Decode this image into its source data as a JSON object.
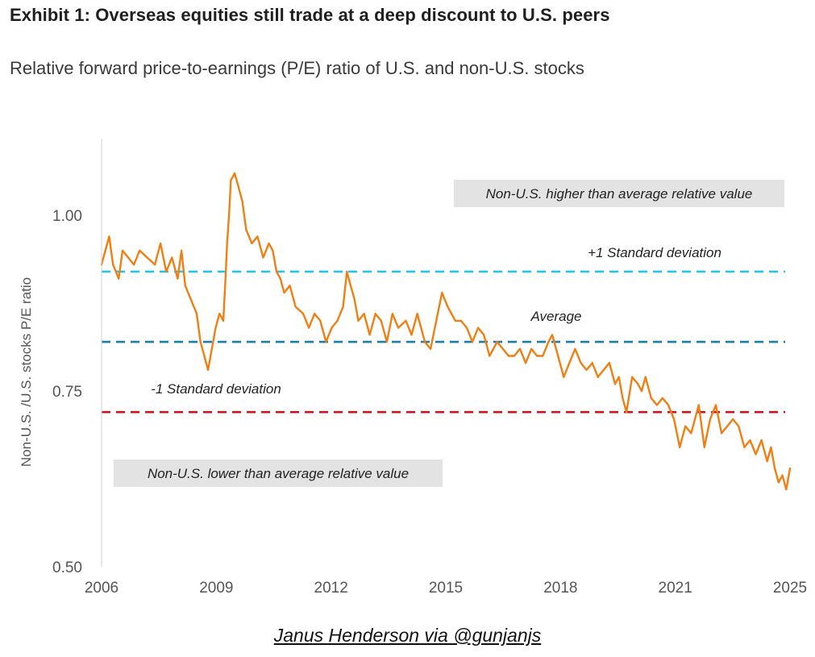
{
  "header": {
    "title": "Exhibit 1: Overseas equities still trade at a deep discount to U.S. peers",
    "subtitle": "Relative forward price-to-earnings (P/E) ratio of U.S. and non-U.S. stocks"
  },
  "footer": {
    "source": "Janus Henderson via @gunjanjs"
  },
  "colors": {
    "series": "#f07f13",
    "plus_sd": "#25c4ec",
    "average": "#1a7ea8",
    "minus_sd": "#d2121d",
    "annotation_box": "#e3e3e3",
    "axis_text": "#555555"
  },
  "chart_data": {
    "type": "line",
    "title": "",
    "xlabel": "",
    "ylabel": "Non-U.S. /U.S. stocks P/E ratio",
    "xlim": [
      2006,
      2024.1
    ],
    "ylim": [
      0.5,
      1.1
    ],
    "xticks": [
      "2006",
      "2009",
      "2012",
      "2015",
      "2018",
      "2021",
      "2025"
    ],
    "yticks": [
      "1.00",
      "0.75",
      "0.50"
    ],
    "grid": false,
    "legend": "none",
    "reference_lines": [
      {
        "label": "+1 Standard deviation",
        "value": 0.92,
        "style": "dashed",
        "color": "#25c4ec"
      },
      {
        "label": "Average",
        "value": 0.82,
        "style": "dashed",
        "color": "#1a7ea8"
      },
      {
        "label": "-1 Standard deviation",
        "value": 0.72,
        "style": "dashed",
        "color": "#d2121d"
      }
    ],
    "annotations": [
      {
        "text": "Non-U.S. higher than average relative value",
        "position": "top-right"
      },
      {
        "text": "Non-U.S. lower than average relative value",
        "position": "bottom-left"
      }
    ],
    "series": [
      {
        "x": [
          2006.0,
          2006.1,
          2006.2,
          2006.3,
          2006.45,
          2006.55,
          2006.7,
          2006.85,
          2007.0,
          2007.2,
          2007.4,
          2007.55,
          2007.7,
          2007.85,
          2008.0,
          2008.1,
          2008.2,
          2008.35,
          2008.5,
          2008.6,
          2008.7,
          2008.8,
          2008.9,
          2009.0,
          2009.1,
          2009.2,
          2009.25,
          2009.3,
          2009.35,
          2009.4,
          2009.5,
          2009.6,
          2009.7,
          2009.8,
          2009.95,
          2010.1,
          2010.25,
          2010.4,
          2010.5,
          2010.6,
          2010.7,
          2010.8,
          2010.95,
          2011.1,
          2011.3,
          2011.45,
          2011.6,
          2011.75,
          2011.9,
          2012.05,
          2012.2,
          2012.35,
          2012.45,
          2012.55,
          2012.65,
          2012.75,
          2012.9,
          2013.05,
          2013.2,
          2013.35,
          2013.5,
          2013.65,
          2013.8,
          2014.0,
          2014.15,
          2014.3,
          2014.5,
          2014.65,
          2014.8,
          2014.95,
          2015.1,
          2015.3,
          2015.45,
          2015.6,
          2015.75,
          2015.9,
          2016.05,
          2016.2,
          2016.4,
          2016.55,
          2016.7,
          2016.85,
          2017.0,
          2017.15,
          2017.3,
          2017.45,
          2017.6,
          2017.75,
          2017.85,
          2018.0,
          2018.15,
          2018.3,
          2018.45,
          2018.6,
          2018.75,
          2018.9,
          2019.05,
          2019.2,
          2019.35,
          2019.5,
          2019.6,
          2019.7,
          2019.8,
          2019.95,
          2020.1,
          2020.2,
          2020.3,
          2020.45,
          2020.6,
          2020.75,
          2020.9,
          2021.05,
          2021.2,
          2021.35,
          2021.5,
          2021.6,
          2021.7,
          2021.85,
          2022.0,
          2022.15,
          2022.3,
          2022.45,
          2022.6,
          2022.75,
          2022.9,
          2023.05,
          2023.2,
          2023.35,
          2023.5,
          2023.6,
          2023.7,
          2023.8,
          2023.9,
          2024.0,
          2024.1
        ],
        "values": [
          0.93,
          0.95,
          0.97,
          0.93,
          0.91,
          0.95,
          0.94,
          0.93,
          0.95,
          0.94,
          0.93,
          0.96,
          0.92,
          0.94,
          0.91,
          0.95,
          0.9,
          0.88,
          0.86,
          0.82,
          0.8,
          0.78,
          0.81,
          0.84,
          0.86,
          0.85,
          0.9,
          0.96,
          1.0,
          1.05,
          1.06,
          1.04,
          1.02,
          0.98,
          0.96,
          0.97,
          0.94,
          0.96,
          0.95,
          0.92,
          0.91,
          0.89,
          0.9,
          0.87,
          0.86,
          0.84,
          0.86,
          0.85,
          0.82,
          0.84,
          0.85,
          0.87,
          0.92,
          0.9,
          0.88,
          0.85,
          0.86,
          0.83,
          0.86,
          0.85,
          0.82,
          0.86,
          0.84,
          0.85,
          0.83,
          0.86,
          0.82,
          0.81,
          0.85,
          0.89,
          0.87,
          0.85,
          0.85,
          0.84,
          0.82,
          0.84,
          0.83,
          0.8,
          0.82,
          0.81,
          0.8,
          0.8,
          0.81,
          0.79,
          0.81,
          0.8,
          0.8,
          0.82,
          0.83,
          0.8,
          0.77,
          0.79,
          0.81,
          0.79,
          0.78,
          0.79,
          0.77,
          0.78,
          0.79,
          0.76,
          0.77,
          0.74,
          0.72,
          0.77,
          0.76,
          0.75,
          0.77,
          0.74,
          0.73,
          0.74,
          0.73,
          0.71,
          0.67,
          0.7,
          0.69,
          0.71,
          0.73,
          0.67,
          0.71,
          0.73,
          0.69,
          0.7,
          0.71,
          0.7,
          0.67,
          0.68,
          0.66,
          0.68,
          0.65,
          0.67,
          0.64,
          0.62,
          0.63,
          0.61,
          0.64
        ]
      }
    ]
  }
}
